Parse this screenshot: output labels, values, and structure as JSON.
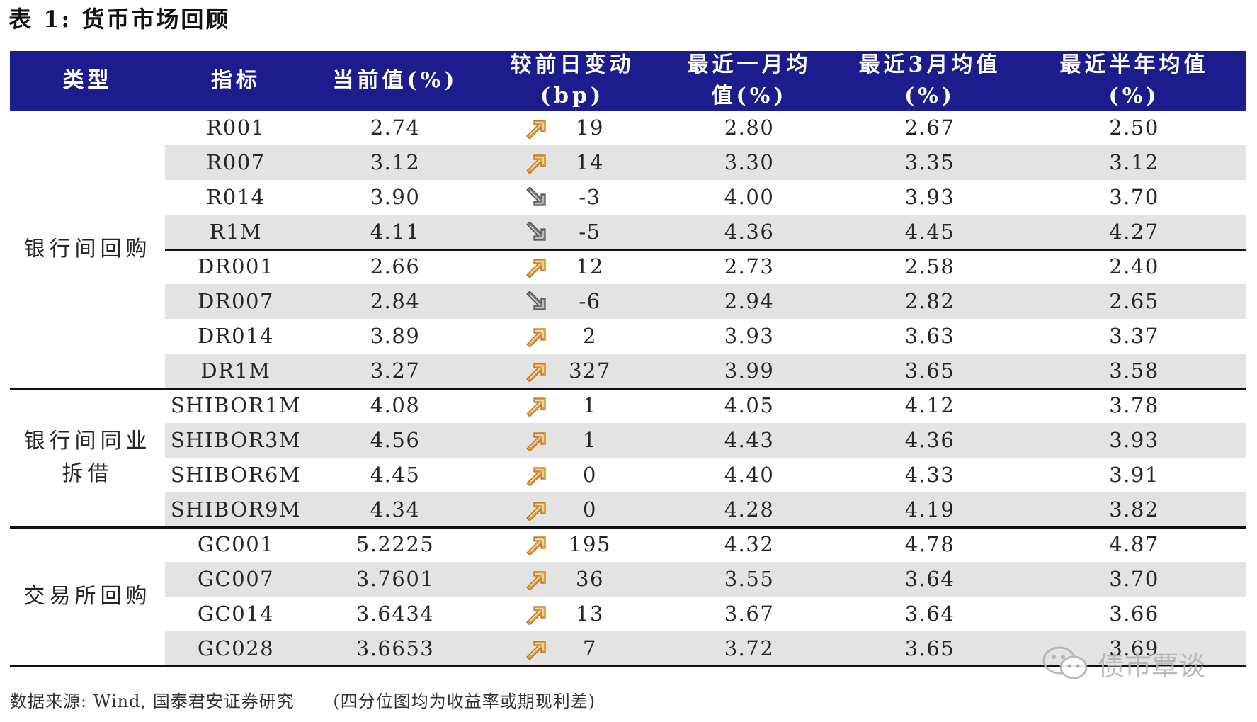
{
  "caption": "表 1:  货币市场回顾",
  "header": [
    "类型",
    "指标",
    "当前值(%)",
    "较前日变动(bp)",
    "最近一月均值(%)",
    "最近3月均值(%)",
    "最近半年均值(%)"
  ],
  "header_lines": {
    "type": "类型",
    "indicator": "指标",
    "current": "当前值(%)",
    "change_1": "较前日变动",
    "change_2": "(bp)",
    "m1_1": "最近一月均",
    "m1_2": "值(%)",
    "m3_1": "最近3月均值",
    "m3_2": "(%)",
    "m6_1": "最近半年均值",
    "m6_2": "(%)"
  },
  "groups": [
    {
      "label_lines": [
        "银行间回购"
      ]
    },
    {
      "label_lines": [
        "银行间同业",
        "拆借"
      ]
    },
    {
      "label_lines": [
        "交易所回购"
      ]
    }
  ],
  "rows": [
    {
      "indicator": "R001",
      "current": "2.74",
      "direction": "up",
      "change": "19",
      "m1": "2.80",
      "m3": "2.67",
      "m6": "2.50"
    },
    {
      "indicator": "R007",
      "current": "3.12",
      "direction": "up",
      "change": "14",
      "m1": "3.30",
      "m3": "3.35",
      "m6": "3.12"
    },
    {
      "indicator": "R014",
      "current": "3.90",
      "direction": "down",
      "change": "-3",
      "m1": "4.00",
      "m3": "3.93",
      "m6": "3.70"
    },
    {
      "indicator": "R1M",
      "current": "4.11",
      "direction": "down",
      "change": "-5",
      "m1": "4.36",
      "m3": "4.45",
      "m6": "4.27"
    },
    {
      "indicator": "DR001",
      "current": "2.66",
      "direction": "up",
      "change": "12",
      "m1": "2.73",
      "m3": "2.58",
      "m6": "2.40"
    },
    {
      "indicator": "DR007",
      "current": "2.84",
      "direction": "down",
      "change": "-6",
      "m1": "2.94",
      "m3": "2.82",
      "m6": "2.65"
    },
    {
      "indicator": "DR014",
      "current": "3.89",
      "direction": "up",
      "change": "2",
      "m1": "3.93",
      "m3": "3.63",
      "m6": "3.37"
    },
    {
      "indicator": "DR1M",
      "current": "3.27",
      "direction": "up",
      "change": "327",
      "m1": "3.99",
      "m3": "3.65",
      "m6": "3.58"
    },
    {
      "indicator": "SHIBOR1M",
      "current": "4.08",
      "direction": "up",
      "change": "1",
      "m1": "4.05",
      "m3": "4.12",
      "m6": "3.78"
    },
    {
      "indicator": "SHIBOR3M",
      "current": "4.56",
      "direction": "up",
      "change": "1",
      "m1": "4.43",
      "m3": "4.36",
      "m6": "3.93"
    },
    {
      "indicator": "SHIBOR6M",
      "current": "4.45",
      "direction": "up",
      "change": "0",
      "m1": "4.40",
      "m3": "4.33",
      "m6": "3.91"
    },
    {
      "indicator": "SHIBOR9M",
      "current": "4.34",
      "direction": "up",
      "change": "0",
      "m1": "4.28",
      "m3": "4.19",
      "m6": "3.82"
    },
    {
      "indicator": "GC001",
      "current": "5.2225",
      "direction": "up",
      "change": "195",
      "m1": "4.32",
      "m3": "4.78",
      "m6": "4.87"
    },
    {
      "indicator": "GC007",
      "current": "3.7601",
      "direction": "up",
      "change": "36",
      "m1": "3.55",
      "m3": "3.64",
      "m6": "3.70"
    },
    {
      "indicator": "GC014",
      "current": "3.6434",
      "direction": "up",
      "change": "13",
      "m1": "3.67",
      "m3": "3.64",
      "m6": "3.66"
    },
    {
      "indicator": "GC028",
      "current": "3.6653",
      "direction": "up",
      "change": "7",
      "m1": "3.72",
      "m3": "3.65",
      "m6": "3.69"
    }
  ],
  "footer": {
    "source": "数据来源: Wind, 国泰君安证券研究",
    "note": "(四分位图均为收益率或期现利差)"
  },
  "watermark": "债市覃谈",
  "colors": {
    "header_bg": "#1c1c8c",
    "header_text": "#ffffff",
    "row_shade": "#e3e3e3",
    "arrow_up": "#e0a040",
    "arrow_down": "#7a7a7a"
  },
  "icons": {
    "up": "arrow-up-right-icon",
    "down": "arrow-down-right-icon",
    "watermark": "wechat-icon"
  }
}
